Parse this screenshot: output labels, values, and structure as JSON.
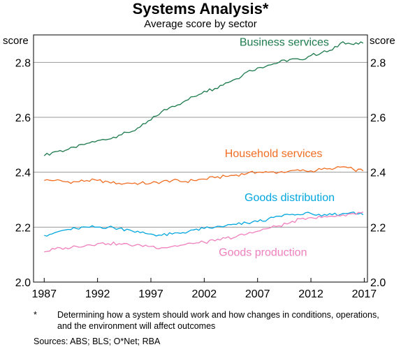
{
  "chart_data": {
    "type": "line",
    "title": "Systems Analysis*",
    "subtitle": "Average score by sector",
    "ylabel_left": "score",
    "ylabel_right": "score",
    "ylim": [
      2.0,
      2.9
    ],
    "yticks": [
      "2.0",
      "2.2",
      "2.4",
      "2.6",
      "2.8"
    ],
    "xlim": [
      1986,
      2017.3
    ],
    "xticks": [
      "1987",
      "1992",
      "1997",
      "2002",
      "2007",
      "2012",
      "2017"
    ],
    "grid": true,
    "series": [
      {
        "name": "Business services",
        "color": "#1d7a4c",
        "x": [
          1987,
          1988,
          1989,
          1990,
          1991,
          1992,
          1993,
          1994,
          1995,
          1996,
          1997,
          1998,
          1999,
          2000,
          2001,
          2002,
          2003,
          2004,
          2005,
          2006,
          2007,
          2008,
          2009,
          2010,
          2011,
          2012,
          2013,
          2014,
          2015,
          2016,
          2016.9
        ],
        "values": [
          2.46,
          2.475,
          2.48,
          2.49,
          2.505,
          2.515,
          2.52,
          2.535,
          2.545,
          2.565,
          2.59,
          2.62,
          2.64,
          2.655,
          2.675,
          2.695,
          2.705,
          2.725,
          2.74,
          2.765,
          2.78,
          2.79,
          2.8,
          2.81,
          2.81,
          2.825,
          2.835,
          2.845,
          2.875,
          2.865,
          2.87
        ]
      },
      {
        "name": "Household services",
        "color": "#f26d21",
        "x": [
          1987,
          1988,
          1989,
          1990,
          1991,
          1992,
          1993,
          1994,
          1995,
          1996,
          1997,
          1998,
          1999,
          2000,
          2001,
          2002,
          2003,
          2004,
          2005,
          2006,
          2007,
          2008,
          2009,
          2010,
          2011,
          2012,
          2013,
          2014,
          2015,
          2016,
          2016.9
        ],
        "values": [
          2.37,
          2.37,
          2.365,
          2.365,
          2.37,
          2.37,
          2.365,
          2.36,
          2.36,
          2.36,
          2.36,
          2.365,
          2.37,
          2.365,
          2.37,
          2.375,
          2.38,
          2.385,
          2.39,
          2.395,
          2.4,
          2.4,
          2.4,
          2.405,
          2.405,
          2.405,
          2.41,
          2.41,
          2.42,
          2.41,
          2.405
        ]
      },
      {
        "name": "Goods distribution",
        "color": "#00a6de",
        "x": [
          1987,
          1988,
          1989,
          1990,
          1991,
          1992,
          1993,
          1994,
          1995,
          1996,
          1997,
          1998,
          1999,
          2000,
          2001,
          2002,
          2003,
          2004,
          2005,
          2006,
          2007,
          2008,
          2009,
          2010,
          2011,
          2012,
          2013,
          2014,
          2015,
          2016,
          2016.9
        ],
        "values": [
          2.17,
          2.18,
          2.19,
          2.195,
          2.2,
          2.2,
          2.2,
          2.195,
          2.19,
          2.18,
          2.175,
          2.17,
          2.175,
          2.18,
          2.19,
          2.195,
          2.2,
          2.205,
          2.21,
          2.215,
          2.22,
          2.23,
          2.24,
          2.245,
          2.245,
          2.25,
          2.24,
          2.245,
          2.25,
          2.255,
          2.245
        ]
      },
      {
        "name": "Goods production",
        "color": "#f07fbd",
        "x": [
          1987,
          1988,
          1989,
          1990,
          1991,
          1992,
          1993,
          1994,
          1995,
          1996,
          1997,
          1998,
          1999,
          2000,
          2001,
          2002,
          2003,
          2004,
          2005,
          2006,
          2007,
          2008,
          2009,
          2010,
          2011,
          2012,
          2013,
          2014,
          2015,
          2016,
          2016.9
        ],
        "values": [
          2.11,
          2.12,
          2.125,
          2.13,
          2.135,
          2.14,
          2.14,
          2.14,
          2.135,
          2.135,
          2.13,
          2.125,
          2.13,
          2.135,
          2.14,
          2.145,
          2.15,
          2.16,
          2.165,
          2.175,
          2.185,
          2.195,
          2.205,
          2.215,
          2.23,
          2.235,
          2.235,
          2.24,
          2.245,
          2.25,
          2.255
        ]
      }
    ],
    "annotations": [
      {
        "text": "Business services",
        "color": "#1d7a4c",
        "x": 2009.5,
        "y": 2.86
      },
      {
        "text": "Household services",
        "color": "#f26d21",
        "x": 2008.5,
        "y": 2.455
      },
      {
        "text": "Goods distribution",
        "color": "#00a6de",
        "x": 2010.0,
        "y": 2.295
      },
      {
        "text": "Goods production",
        "color": "#f07fbd",
        "x": 2007.5,
        "y": 2.095
      }
    ]
  },
  "footnote": {
    "marker": "*",
    "text": "Determining how a system should work and how changes in conditions, operations, and the environment will affect outcomes",
    "sources": "Sources:   ABS; BLS; O*Net; RBA"
  }
}
